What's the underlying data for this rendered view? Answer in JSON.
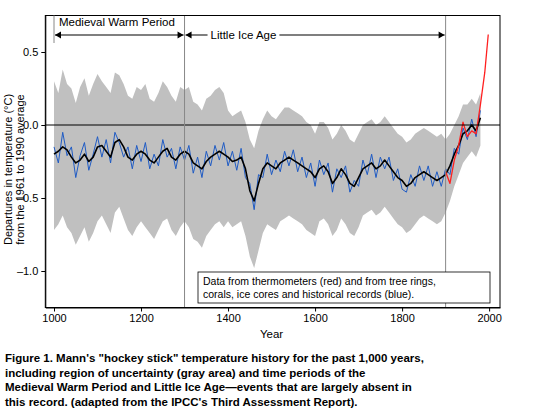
{
  "chart_data": {
    "type": "line",
    "xlabel": "Year",
    "ylabel": [
      "Departures in temperature (°C)",
      "from the 1961 to 1990 average"
    ],
    "xlim": [
      980,
      2025
    ],
    "ylim": [
      -1.25,
      0.75
    ],
    "xticks": [
      1000,
      1200,
      1400,
      1600,
      1800,
      2000
    ],
    "yticks": [
      {
        "value": -1.0,
        "label": "–1.0"
      },
      {
        "value": -0.5,
        "label": "–0.5"
      },
      {
        "value": 0,
        "label": "0.0"
      },
      {
        "value": 0.5,
        "label": "0.5"
      }
    ],
    "grid": false,
    "reference_y": [
      0
    ],
    "periods": [
      {
        "label": "Medieval Warm Period",
        "start": 1000,
        "end": 1300
      },
      {
        "label": "Little Ice Age",
        "start": 1300,
        "end": 1900
      }
    ],
    "note": [
      "Data from thermometers (red) and from tree rings,",
      "corals, ice cores and historical records (blue)."
    ],
    "caption": [
      "Figure 1. Mann's \"hockey stick\" temperature history for the past 1,000 years,",
      "including region of uncertainty (gray area) and time periods of the",
      "Medieval Warm Period and Little Ice Age—events that are largely absent in",
      "this record. (adapted from the IPCC's Third Assessment Report)."
    ],
    "x": [
      1000,
      1010,
      1020,
      1030,
      1040,
      1050,
      1060,
      1070,
      1080,
      1090,
      1100,
      1110,
      1120,
      1130,
      1140,
      1150,
      1160,
      1170,
      1180,
      1190,
      1200,
      1210,
      1220,
      1230,
      1240,
      1250,
      1260,
      1270,
      1280,
      1290,
      1300,
      1310,
      1320,
      1330,
      1340,
      1350,
      1360,
      1370,
      1380,
      1390,
      1400,
      1410,
      1420,
      1430,
      1440,
      1450,
      1460,
      1470,
      1480,
      1490,
      1500,
      1510,
      1520,
      1530,
      1540,
      1550,
      1560,
      1570,
      1580,
      1590,
      1600,
      1610,
      1620,
      1630,
      1640,
      1650,
      1660,
      1670,
      1680,
      1690,
      1700,
      1710,
      1720,
      1730,
      1740,
      1750,
      1760,
      1770,
      1780,
      1790,
      1800,
      1810,
      1820,
      1830,
      1840,
      1850,
      1860,
      1870,
      1880,
      1890,
      1900,
      1910,
      1920,
      1930,
      1940,
      1950,
      1960,
      1970,
      1980,
      1990,
      1998
    ],
    "series": [
      {
        "type": "band",
        "color": "#c0c0c0",
        "upper": [
          0.3,
          0.22,
          0.38,
          0.28,
          0.25,
          0.15,
          0.26,
          0.32,
          0.2,
          0.28,
          0.35,
          0.3,
          0.26,
          0.22,
          0.36,
          0.34,
          0.28,
          0.2,
          0.18,
          0.26,
          0.24,
          0.28,
          0.18,
          0.16,
          0.22,
          0.3,
          0.26,
          0.2,
          0.16,
          0.26,
          0.24,
          0.26,
          0.16,
          0.14,
          0.1,
          0.18,
          0.2,
          0.24,
          0.26,
          0.22,
          0.1,
          0.06,
          0.08,
          0.1,
          0.02,
          -0.1,
          -0.16,
          -0.04,
          0.04,
          0.1,
          0.06,
          0.04,
          0.08,
          0.12,
          0.12,
          0.1,
          0.08,
          0.06,
          0.02,
          0.0,
          -0.06,
          0.02,
          0.02,
          -0.02,
          -0.1,
          -0.06,
          0.0,
          -0.04,
          -0.1,
          -0.12,
          -0.06,
          0.0,
          0.02,
          0.04,
          0.0,
          0.02,
          0.06,
          0.02,
          -0.02,
          -0.06,
          -0.08,
          -0.12,
          -0.1,
          -0.06,
          -0.04,
          -0.02,
          -0.04,
          -0.06,
          -0.08,
          -0.06,
          -0.1,
          -0.06,
          0.0,
          0.06,
          0.14,
          0.14,
          0.18,
          0.14,
          0.22,
          null,
          null
        ],
        "lower": [
          -0.72,
          -0.68,
          -0.62,
          -0.7,
          -0.74,
          -0.82,
          -0.76,
          -0.7,
          -0.8,
          -0.74,
          -0.66,
          -0.62,
          -0.68,
          -0.74,
          -0.6,
          -0.56,
          -0.64,
          -0.72,
          -0.76,
          -0.7,
          -0.66,
          -0.7,
          -0.74,
          -0.78,
          -0.72,
          -0.66,
          -0.64,
          -0.72,
          -0.76,
          -0.7,
          -0.66,
          -0.7,
          -0.78,
          -0.8,
          -0.84,
          -0.76,
          -0.72,
          -0.68,
          -0.66,
          -0.7,
          -0.66,
          -0.7,
          -0.68,
          -0.66,
          -0.76,
          -0.9,
          -0.98,
          -0.86,
          -0.74,
          -0.68,
          -0.7,
          -0.72,
          -0.66,
          -0.64,
          -0.62,
          -0.64,
          -0.66,
          -0.68,
          -0.72,
          -0.74,
          -0.76,
          -0.66,
          -0.64,
          -0.68,
          -0.76,
          -0.72,
          -0.64,
          -0.68,
          -0.74,
          -0.76,
          -0.7,
          -0.62,
          -0.6,
          -0.58,
          -0.62,
          -0.6,
          -0.56,
          -0.6,
          -0.64,
          -0.68,
          -0.7,
          -0.74,
          -0.72,
          -0.68,
          -0.64,
          -0.62,
          -0.64,
          -0.66,
          -0.68,
          -0.66,
          -0.6,
          -0.52,
          -0.42,
          -0.34,
          -0.26,
          -0.22,
          -0.18,
          -0.22,
          -0.14,
          null,
          null
        ]
      },
      {
        "type": "line",
        "color": "#1f5bc4",
        "values": [
          -0.15,
          -0.26,
          -0.05,
          -0.21,
          -0.15,
          -0.36,
          -0.21,
          -0.12,
          -0.31,
          -0.2,
          -0.08,
          -0.22,
          -0.1,
          -0.26,
          -0.05,
          -0.12,
          -0.22,
          -0.15,
          -0.3,
          -0.14,
          -0.25,
          -0.12,
          -0.3,
          -0.2,
          -0.28,
          -0.1,
          -0.22,
          -0.16,
          -0.3,
          -0.15,
          -0.24,
          -0.14,
          -0.33,
          -0.22,
          -0.36,
          -0.18,
          -0.28,
          -0.14,
          -0.24,
          -0.12,
          -0.28,
          -0.18,
          -0.31,
          -0.16,
          -0.36,
          -0.4,
          -0.58,
          -0.34,
          -0.36,
          -0.2,
          -0.34,
          -0.24,
          -0.32,
          -0.18,
          -0.28,
          -0.17,
          -0.32,
          -0.22,
          -0.36,
          -0.26,
          -0.42,
          -0.24,
          -0.34,
          -0.26,
          -0.46,
          -0.3,
          -0.36,
          -0.28,
          -0.46,
          -0.38,
          -0.42,
          -0.24,
          -0.34,
          -0.2,
          -0.36,
          -0.22,
          -0.3,
          -0.22,
          -0.38,
          -0.3,
          -0.44,
          -0.46,
          -0.34,
          -0.42,
          -0.28,
          -0.38,
          -0.28,
          -0.42,
          -0.32,
          -0.42,
          -0.3,
          -0.34,
          -0.16,
          -0.2,
          -0.02,
          -0.1,
          0.04,
          -0.08,
          0.1,
          null,
          null
        ]
      },
      {
        "type": "line",
        "color": "#000000",
        "values": [
          -0.2,
          -0.18,
          -0.15,
          -0.17,
          -0.22,
          -0.26,
          -0.24,
          -0.2,
          -0.25,
          -0.22,
          -0.15,
          -0.14,
          -0.18,
          -0.22,
          -0.12,
          -0.1,
          -0.15,
          -0.22,
          -0.24,
          -0.2,
          -0.18,
          -0.2,
          -0.24,
          -0.26,
          -0.22,
          -0.18,
          -0.16,
          -0.22,
          -0.24,
          -0.2,
          -0.18,
          -0.2,
          -0.26,
          -0.28,
          -0.3,
          -0.25,
          -0.22,
          -0.2,
          -0.18,
          -0.2,
          -0.22,
          -0.25,
          -0.24,
          -0.22,
          -0.3,
          -0.45,
          -0.52,
          -0.4,
          -0.3,
          -0.26,
          -0.28,
          -0.3,
          -0.26,
          -0.24,
          -0.22,
          -0.24,
          -0.26,
          -0.28,
          -0.3,
          -0.32,
          -0.36,
          -0.3,
          -0.28,
          -0.32,
          -0.4,
          -0.36,
          -0.3,
          -0.34,
          -0.4,
          -0.42,
          -0.36,
          -0.3,
          -0.28,
          -0.26,
          -0.3,
          -0.28,
          -0.24,
          -0.28,
          -0.32,
          -0.36,
          -0.38,
          -0.42,
          -0.4,
          -0.36,
          -0.34,
          -0.32,
          -0.34,
          -0.36,
          -0.38,
          -0.36,
          -0.34,
          -0.28,
          -0.2,
          -0.14,
          -0.06,
          -0.04,
          0.0,
          -0.04,
          0.05,
          null,
          null
        ]
      },
      {
        "type": "line",
        "color": "#ff2020",
        "values": [
          null,
          null,
          null,
          null,
          null,
          null,
          null,
          null,
          null,
          null,
          null,
          null,
          null,
          null,
          null,
          null,
          null,
          null,
          null,
          null,
          null,
          null,
          null,
          null,
          null,
          null,
          null,
          null,
          null,
          null,
          null,
          null,
          null,
          null,
          null,
          null,
          null,
          null,
          null,
          null,
          null,
          null,
          null,
          null,
          null,
          null,
          null,
          null,
          null,
          null,
          null,
          null,
          null,
          null,
          null,
          null,
          null,
          null,
          null,
          null,
          null,
          null,
          null,
          null,
          null,
          null,
          null,
          null,
          null,
          null,
          null,
          null,
          null,
          null,
          null,
          null,
          null,
          null,
          null,
          null,
          null,
          null,
          null,
          null,
          null,
          null,
          null,
          null,
          null,
          null,
          -0.32,
          -0.4,
          -0.24,
          -0.14,
          0.02,
          -0.08,
          -0.04,
          -0.06,
          0.14,
          0.36,
          0.62
        ]
      }
    ]
  }
}
